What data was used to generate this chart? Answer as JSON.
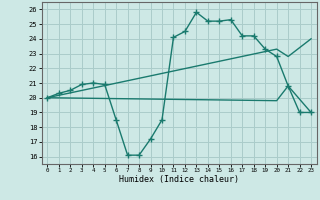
{
  "xlabel": "Humidex (Indice chaleur)",
  "bg_color": "#cde8e5",
  "grid_color": "#aaccca",
  "line_color": "#1a7a6e",
  "xlim": [
    -0.5,
    23.5
  ],
  "ylim": [
    15.5,
    26.5
  ],
  "xticks": [
    0,
    1,
    2,
    3,
    4,
    5,
    6,
    7,
    8,
    9,
    10,
    11,
    12,
    13,
    14,
    15,
    16,
    17,
    18,
    19,
    20,
    21,
    22,
    23
  ],
  "yticks": [
    16,
    17,
    18,
    19,
    20,
    21,
    22,
    23,
    24,
    25,
    26
  ],
  "line1_x": [
    0,
    1,
    2,
    3,
    4,
    5,
    6,
    7,
    8,
    9,
    10,
    11,
    12,
    13,
    14,
    15,
    16,
    17,
    18,
    19,
    20,
    21,
    22,
    23
  ],
  "line1_y": [
    20.0,
    20.3,
    20.5,
    20.9,
    21.0,
    20.9,
    18.5,
    16.1,
    16.1,
    17.2,
    18.5,
    24.1,
    24.5,
    25.8,
    25.2,
    25.2,
    25.3,
    24.2,
    24.2,
    23.3,
    22.8,
    20.8,
    19.0,
    19.0
  ],
  "line2_x": [
    0,
    20,
    21,
    23
  ],
  "line2_y": [
    20.0,
    23.3,
    22.8,
    24.0
  ],
  "line3_x": [
    0,
    20,
    21,
    23
  ],
  "line3_y": [
    20.0,
    19.8,
    20.8,
    19.0
  ],
  "marker_size": 4
}
